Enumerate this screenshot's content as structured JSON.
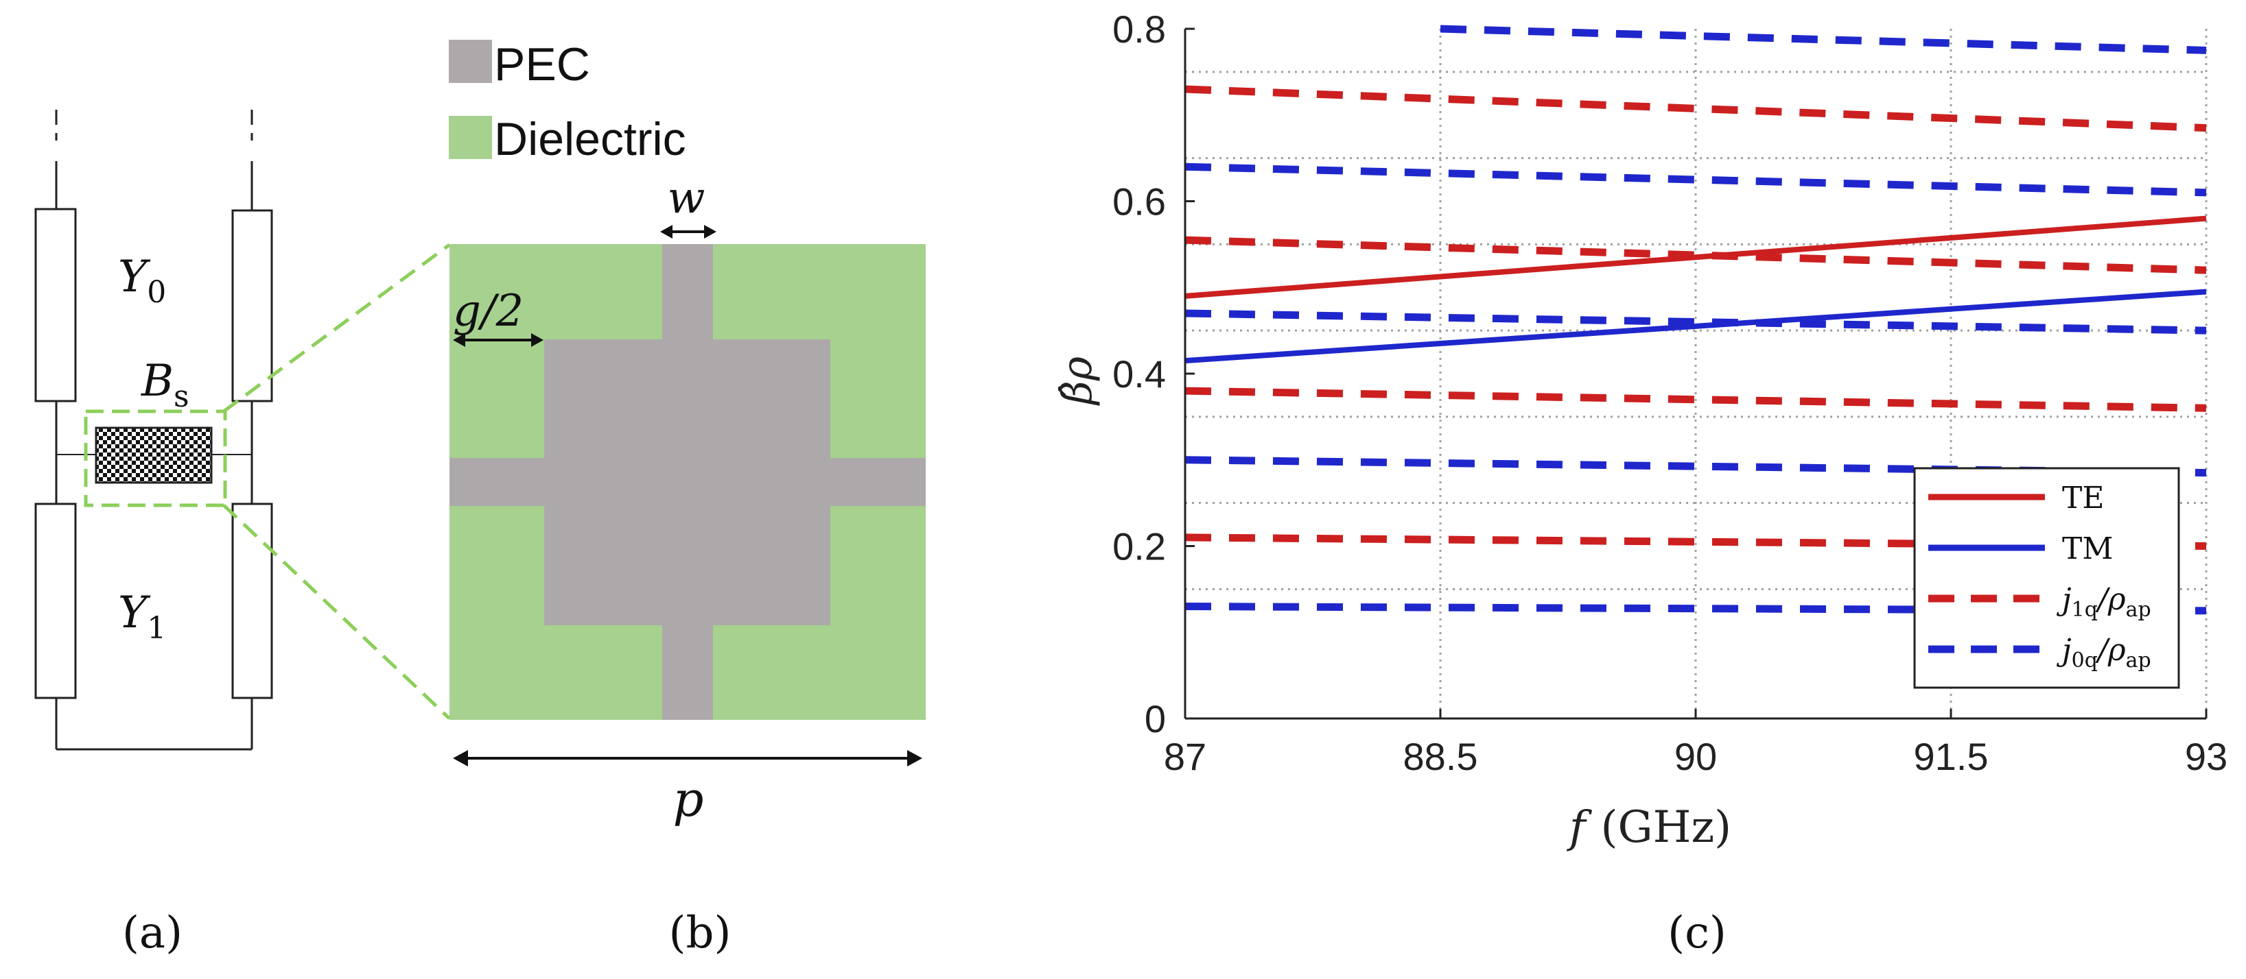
{
  "panel_a": {
    "caption": "(a)",
    "label_y0": "Y",
    "label_y0_sub": "0",
    "label_bs": "B",
    "label_bs_sub": "s",
    "label_y1": "Y",
    "label_y1_sub": "1"
  },
  "panel_b": {
    "caption": "(b)",
    "legend": [
      {
        "label": "PEC",
        "color": "#ada9aa"
      },
      {
        "label": "Dielectric",
        "color": "#a6d18f"
      }
    ],
    "dim_w": "w",
    "dim_g2": "g/2",
    "dim_p": "p"
  },
  "panel_c": {
    "caption": "(c)"
  },
  "chart_data": {
    "type": "line",
    "title": "",
    "xlabel": "f",
    "xlabel_unit": "(GHz)",
    "ylabel": "β̂ρ",
    "xlim": [
      87,
      93
    ],
    "ylim": [
      0,
      0.8
    ],
    "xticks": [
      87,
      88.5,
      90,
      91.5,
      93
    ],
    "xtick_labels": [
      "87",
      "88.5",
      "90",
      "91.5",
      "93"
    ],
    "yticks": [
      0,
      0.2,
      0.4,
      0.6,
      0.8
    ],
    "ytick_labels": [
      "0",
      "0.2",
      "0.4",
      "0.6",
      "0.8"
    ],
    "grid": true,
    "legend_position": "bottom-right",
    "series": [
      {
        "name": "TE",
        "style": "solid",
        "color": "#cc1f1f",
        "x": [
          87,
          93
        ],
        "y": [
          0.49,
          0.58
        ]
      },
      {
        "name": "TM",
        "style": "solid",
        "color": "#1f27cc",
        "x": [
          87,
          93
        ],
        "y": [
          0.415,
          0.495
        ]
      },
      {
        "name": "j1q/ρap",
        "style": "dashed",
        "color": "#cc1f1f",
        "x": [
          87,
          93
        ],
        "y": [
          0.73,
          0.685
        ]
      },
      {
        "name": "j1q/ρap",
        "style": "dashed",
        "color": "#cc1f1f",
        "x": [
          87,
          93
        ],
        "y": [
          0.555,
          0.52
        ]
      },
      {
        "name": "j1q/ρap",
        "style": "dashed",
        "color": "#cc1f1f",
        "x": [
          87,
          93
        ],
        "y": [
          0.38,
          0.36
        ]
      },
      {
        "name": "j1q/ρap",
        "style": "dashed",
        "color": "#cc1f1f",
        "x": [
          87,
          93
        ],
        "y": [
          0.21,
          0.2
        ]
      },
      {
        "name": "j0q/ρap",
        "style": "dashed",
        "color": "#1f27cc",
        "x": [
          88.5,
          93
        ],
        "y": [
          0.8,
          0.775
        ]
      },
      {
        "name": "j0q/ρap",
        "style": "dashed",
        "color": "#1f27cc",
        "x": [
          87,
          93
        ],
        "y": [
          0.64,
          0.61
        ]
      },
      {
        "name": "j0q/ρap",
        "style": "dashed",
        "color": "#1f27cc",
        "x": [
          87,
          93
        ],
        "y": [
          0.47,
          0.45
        ]
      },
      {
        "name": "j0q/ρap",
        "style": "dashed",
        "color": "#1f27cc",
        "x": [
          87,
          93
        ],
        "y": [
          0.3,
          0.285
        ]
      },
      {
        "name": "j0q/ρap",
        "style": "dashed",
        "color": "#1f27cc",
        "x": [
          87,
          93
        ],
        "y": [
          0.13,
          0.125
        ]
      }
    ],
    "legend_entries": [
      {
        "label": "TE",
        "style": "solid",
        "color": "#cc1f1f"
      },
      {
        "label": "TM",
        "style": "solid",
        "color": "#1f27cc"
      },
      {
        "label": "j",
        "sub": "1q",
        "rest": "/ρ",
        "sub2": "ap",
        "style": "dashed",
        "color": "#cc1f1f"
      },
      {
        "label": "j",
        "sub": "0q",
        "rest": "/ρ",
        "sub2": "ap",
        "style": "dashed",
        "color": "#1f27cc"
      }
    ]
  }
}
